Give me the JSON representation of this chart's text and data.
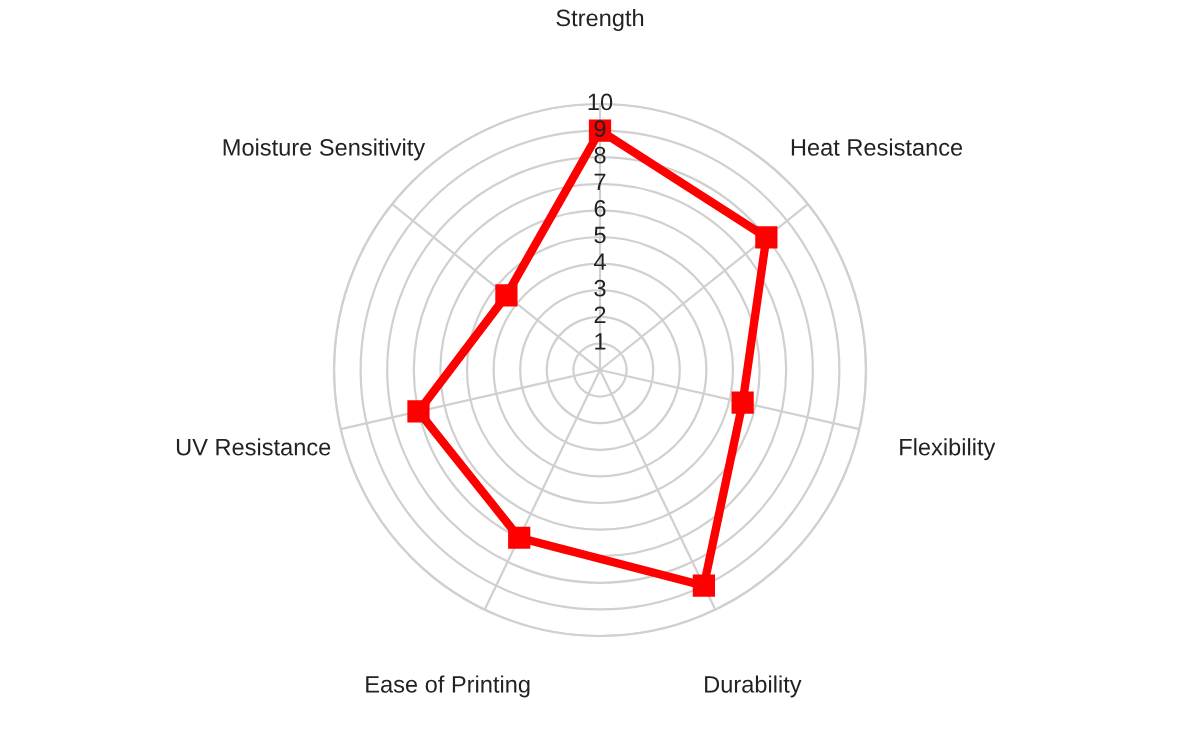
{
  "chart_data": {
    "type": "radar",
    "categories": [
      "Strength",
      "Heat Resistance",
      "Flexibility",
      "Durability",
      "Ease of Printing",
      "UV Resistance",
      "Moisture Sensitivity"
    ],
    "series": [
      {
        "color": "#ff0000",
        "values": [
          9,
          8,
          5.5,
          9,
          7,
          7,
          4.5
        ]
      }
    ],
    "ylim": [
      0,
      10
    ],
    "yticks": [
      1,
      2,
      3,
      4,
      5,
      6,
      7,
      8,
      9,
      10
    ],
    "grid": true,
    "marker": "square",
    "line_style": "solid"
  }
}
